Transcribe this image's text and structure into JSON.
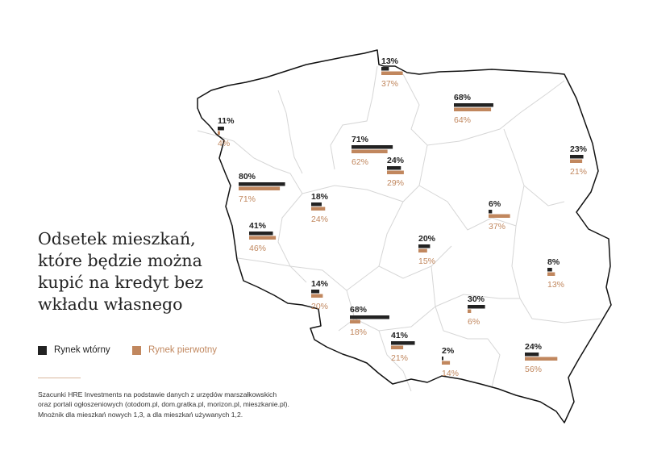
{
  "title": "Odsetek mieszkań,\nktóre będzie można\nkupić na kredyt bez\nwkładu własnego",
  "legend": {
    "secondary_label": "Rynek wtórny",
    "primary_label": "Rynek pierwotny"
  },
  "source_lines": [
    "Szacunki HRE Investments na podstawie danych z urzędów marszałkowskich",
    "oraz portali ogłoszeniowych (otodom.pl, dom.gratka.pl, morizon.pl, mieszkanie.pl).",
    "Mnożnik dla mieszkań nowych 1,3, a dla mieszkań używanych 1,2."
  ],
  "colors": {
    "secondary": "#222222",
    "primary": "#c1875e",
    "border": "#111111",
    "internal_border": "#d6d6d6"
  },
  "cities": [
    {
      "id": "gdansk",
      "secondary": 13,
      "primary": 37
    },
    {
      "id": "olsztyn",
      "secondary": 68,
      "primary": 64
    },
    {
      "id": "szczecin",
      "secondary": 11,
      "primary": 4
    },
    {
      "id": "bydgoszcz",
      "secondary": 71,
      "primary": 62
    },
    {
      "id": "torun",
      "secondary": 24,
      "primary": 29
    },
    {
      "id": "bialystok",
      "secondary": 23,
      "primary": 21
    },
    {
      "id": "gorzow",
      "secondary": 80,
      "primary": 71
    },
    {
      "id": "poznan",
      "secondary": 18,
      "primary": 24
    },
    {
      "id": "warszawa",
      "secondary": 6,
      "primary": 37
    },
    {
      "id": "zielona-gora",
      "secondary": 41,
      "primary": 46
    },
    {
      "id": "lodz",
      "secondary": 20,
      "primary": 15
    },
    {
      "id": "lublin",
      "secondary": 8,
      "primary": 13
    },
    {
      "id": "wroclaw",
      "secondary": 14,
      "primary": 20
    },
    {
      "id": "kielce",
      "secondary": 30,
      "primary": 6
    },
    {
      "id": "opole",
      "secondary": 68,
      "primary": 18
    },
    {
      "id": "katowice",
      "secondary": 41,
      "primary": 21
    },
    {
      "id": "krakow",
      "secondary": 2,
      "primary": 14
    },
    {
      "id": "rzeszow",
      "secondary": 24,
      "primary": 56
    }
  ]
}
